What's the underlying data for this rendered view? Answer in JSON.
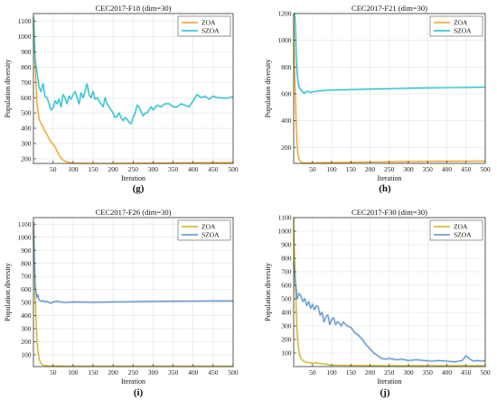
{
  "chart_data": [
    {
      "type": "line",
      "panel_label": "(g)",
      "title": "CEC2017-F18 (dim=30)",
      "xlabel": "Iteration",
      "ylabel": "Population diversity",
      "xlim": [
        1,
        500
      ],
      "ylim": [
        170,
        1150
      ],
      "xticks": [
        50,
        100,
        150,
        200,
        250,
        300,
        350,
        400,
        450,
        500
      ],
      "yticks": [
        200,
        300,
        400,
        500,
        600,
        700,
        800,
        900,
        1000,
        1100
      ],
      "legend": "top-right",
      "grid": true,
      "series": [
        {
          "name": "ZOA",
          "color": "#f0a01e",
          "x": [
            1,
            5,
            10,
            15,
            20,
            25,
            30,
            35,
            40,
            45,
            50,
            55,
            60,
            65,
            70,
            75,
            80,
            85,
            90,
            100,
            120,
            150,
            200,
            250,
            300,
            350,
            400,
            450,
            500
          ],
          "y": [
            1130,
            820,
            560,
            460,
            430,
            410,
            380,
            360,
            330,
            310,
            295,
            280,
            250,
            225,
            205,
            192,
            185,
            180,
            176,
            172,
            171,
            170,
            170,
            171,
            172,
            173,
            174,
            175,
            175
          ]
        },
        {
          "name": "SZOA",
          "color": "#1fbdc9",
          "x": [
            1,
            5,
            10,
            15,
            20,
            25,
            30,
            35,
            40,
            45,
            50,
            55,
            60,
            65,
            70,
            75,
            80,
            85,
            90,
            95,
            100,
            105,
            110,
            115,
            120,
            125,
            130,
            135,
            140,
            145,
            150,
            155,
            160,
            165,
            170,
            175,
            180,
            185,
            190,
            195,
            200,
            205,
            210,
            215,
            220,
            225,
            230,
            235,
            240,
            245,
            250,
            255,
            260,
            265,
            270,
            275,
            280,
            285,
            290,
            295,
            300,
            310,
            320,
            330,
            340,
            350,
            360,
            370,
            380,
            390,
            400,
            410,
            420,
            430,
            440,
            450,
            460,
            470,
            480,
            490,
            500
          ],
          "y": [
            1130,
            850,
            760,
            670,
            640,
            690,
            610,
            600,
            560,
            520,
            530,
            580,
            560,
            590,
            540,
            620,
            600,
            560,
            610,
            590,
            620,
            640,
            600,
            560,
            630,
            600,
            640,
            690,
            620,
            600,
            640,
            590,
            600,
            580,
            560,
            540,
            600,
            560,
            540,
            520,
            500,
            470,
            480,
            500,
            470,
            450,
            470,
            460,
            440,
            430,
            470,
            500,
            550,
            540,
            510,
            480,
            500,
            500,
            520,
            540,
            520,
            550,
            540,
            560,
            560,
            540,
            540,
            560,
            550,
            540,
            580,
            620,
            600,
            610,
            590,
            610,
            600,
            600,
            595,
            600,
            605
          ]
        }
      ]
    },
    {
      "type": "line",
      "panel_label": "(h)",
      "title": "CEC2017-F21 (dim=30)",
      "xlabel": "Iteration",
      "ylabel": "Population diversity",
      "xlim": [
        1,
        500
      ],
      "ylim": [
        80,
        1200
      ],
      "xticks": [
        50,
        100,
        150,
        200,
        250,
        300,
        350,
        400,
        450,
        500
      ],
      "yticks": [
        200,
        400,
        600,
        800,
        1000,
        1200
      ],
      "legend": "top-right",
      "grid": true,
      "series": [
        {
          "name": "ZOA",
          "color": "#f0a01e",
          "x": [
            1,
            3,
            5,
            8,
            10,
            12,
            15,
            20,
            25,
            30,
            40,
            50,
            100,
            150,
            200,
            250,
            300,
            350,
            400,
            450,
            500
          ],
          "y": [
            1200,
            800,
            600,
            350,
            220,
            150,
            110,
            90,
            85,
            83,
            83,
            84,
            86,
            88,
            90,
            92,
            94,
            95,
            96,
            97,
            98
          ]
        },
        {
          "name": "SZOA",
          "color": "#1fbdc9",
          "x": [
            1,
            3,
            5,
            8,
            10,
            12,
            15,
            20,
            25,
            30,
            35,
            40,
            45,
            50,
            60,
            70,
            80,
            100,
            150,
            200,
            250,
            300,
            350,
            400,
            450,
            500
          ],
          "y": [
            1200,
            1200,
            1150,
            880,
            760,
            700,
            650,
            630,
            610,
            605,
            620,
            615,
            610,
            615,
            620,
            622,
            625,
            628,
            632,
            635,
            638,
            642,
            645,
            647,
            648,
            650
          ]
        }
      ]
    },
    {
      "type": "line",
      "panel_label": "(i)",
      "title": "CEC2017-F26 (dim=30)",
      "xlabel": "Iteration",
      "ylabel": "Population diversity",
      "xlim": [
        1,
        500
      ],
      "ylim": [
        10,
        1150
      ],
      "xticks": [
        50,
        100,
        150,
        200,
        250,
        300,
        350,
        400,
        450,
        500
      ],
      "yticks": [
        100,
        200,
        300,
        400,
        500,
        600,
        700,
        800,
        900,
        1000,
        1100
      ],
      "legend": "top-right",
      "grid": true,
      "series": [
        {
          "name": "ZOA",
          "color": "#c8b41e",
          "x": [
            1,
            3,
            5,
            8,
            10,
            13,
            16,
            20,
            25,
            30,
            40,
            50,
            75,
            100,
            150,
            200,
            250,
            300,
            350,
            400,
            450,
            500
          ],
          "y": [
            1120,
            800,
            560,
            330,
            200,
            110,
            60,
            35,
            22,
            18,
            15,
            14,
            13,
            12,
            12,
            12,
            12,
            12,
            12,
            12,
            12,
            12
          ]
        },
        {
          "name": "SZOA",
          "color": "#5a8fc8",
          "x": [
            1,
            3,
            5,
            8,
            10,
            12,
            15,
            20,
            25,
            30,
            35,
            40,
            45,
            50,
            60,
            70,
            80,
            100,
            150,
            200,
            250,
            300,
            350,
            400,
            450,
            500
          ],
          "y": [
            1120,
            850,
            640,
            570,
            540,
            560,
            520,
            510,
            515,
            505,
            510,
            500,
            495,
            505,
            510,
            505,
            500,
            505,
            502,
            505,
            507,
            509,
            510,
            511,
            512,
            512
          ]
        }
      ]
    },
    {
      "type": "line",
      "panel_label": "(j)",
      "title": "CEC2017-F30 (dim=30)",
      "xlabel": "Iteration",
      "ylabel": "Population diversity",
      "xlim": [
        1,
        500
      ],
      "ylim": [
        0,
        1100
      ],
      "xticks": [
        50,
        100,
        150,
        200,
        250,
        300,
        350,
        400,
        450,
        500
      ],
      "yticks": [
        100,
        200,
        300,
        400,
        500,
        600,
        700,
        800,
        900,
        1000,
        1100
      ],
      "legend": "top-right",
      "grid": true,
      "series": [
        {
          "name": "ZOA",
          "color": "#c8b41e",
          "x": [
            1,
            3,
            5,
            8,
            10,
            13,
            16,
            20,
            25,
            30,
            40,
            50,
            60,
            70,
            80,
            90,
            100,
            150,
            200,
            250,
            300,
            350,
            400,
            450,
            500
          ],
          "y": [
            1100,
            850,
            650,
            400,
            250,
            150,
            90,
            60,
            45,
            35,
            30,
            25,
            28,
            22,
            20,
            15,
            10,
            8,
            7,
            6,
            6,
            6,
            6,
            6,
            6
          ]
        },
        {
          "name": "SZOA",
          "color": "#5a8fc8",
          "x": [
            1,
            3,
            5,
            8,
            10,
            15,
            20,
            25,
            30,
            35,
            40,
            45,
            50,
            55,
            60,
            65,
            70,
            75,
            80,
            85,
            90,
            95,
            100,
            105,
            110,
            115,
            120,
            125,
            130,
            140,
            150,
            160,
            170,
            180,
            190,
            200,
            210,
            220,
            230,
            240,
            250,
            260,
            270,
            280,
            290,
            300,
            320,
            340,
            360,
            380,
            400,
            420,
            440,
            450,
            460,
            470,
            480,
            490,
            500
          ],
          "y": [
            780,
            700,
            620,
            560,
            500,
            540,
            520,
            480,
            500,
            450,
            480,
            430,
            460,
            420,
            450,
            440,
            380,
            400,
            330,
            370,
            380,
            310,
            350,
            360,
            310,
            330,
            320,
            300,
            330,
            300,
            290,
            250,
            230,
            200,
            160,
            130,
            100,
            80,
            60,
            55,
            60,
            55,
            50,
            55,
            50,
            45,
            50,
            45,
            40,
            45,
            40,
            35,
            45,
            80,
            55,
            40,
            45,
            40,
            45
          ]
        }
      ]
    }
  ]
}
